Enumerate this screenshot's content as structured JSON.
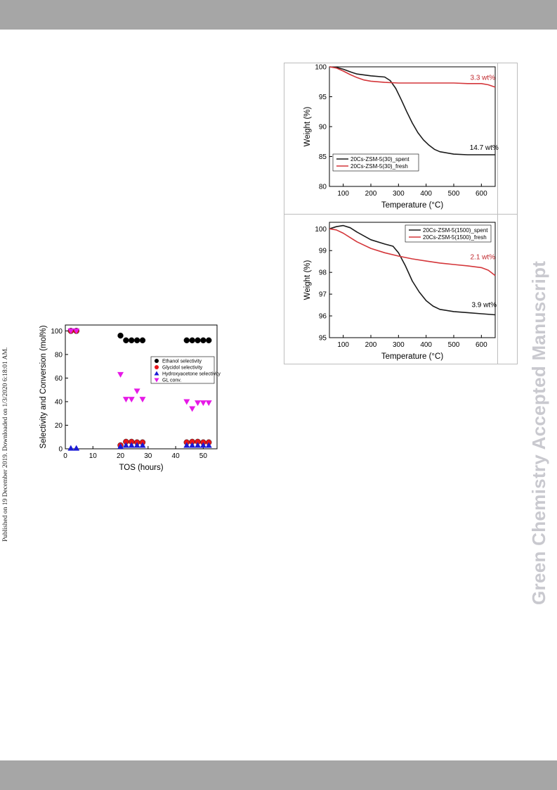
{
  "side_note": "Published on 19 December 2019. Downloaded on 1/3/2020 6:18:01 AM.",
  "journal_watermark": "Green Chemistry Accepted Manuscript",
  "chart_data": [
    {
      "type": "scatter",
      "xlabel": "TOS (hours)",
      "ylabel": "Selectivity and Conversion (mol%)",
      "xlim": [
        0,
        55
      ],
      "ylim": [
        0,
        105
      ],
      "xticks": [
        0,
        10,
        20,
        30,
        40,
        50
      ],
      "yticks": [
        0,
        20,
        40,
        60,
        80,
        100
      ],
      "legend_position": "middle-right",
      "series": [
        {
          "name": "Ethanol selectivity",
          "color": "#000000",
          "marker": "circle",
          "x": [
            2,
            4,
            20,
            22,
            24,
            26,
            28,
            44,
            46,
            48,
            50,
            52
          ],
          "y": [
            100,
            100,
            96,
            92,
            92,
            92,
            92,
            92,
            92,
            92,
            92,
            92
          ]
        },
        {
          "name": "Glycidol selectivity",
          "color": "#e8151a",
          "marker": "circle",
          "x": [
            2,
            4,
            20,
            22,
            24,
            26,
            28,
            44,
            46,
            48,
            50,
            52
          ],
          "y": [
            100,
            100,
            3,
            6,
            6,
            5.5,
            5.5,
            5.5,
            6,
            6,
            5.5,
            5.5
          ]
        },
        {
          "name": "Hydroxyacetone selectivity",
          "color": "#1a1ad6",
          "marker": "triangle-up",
          "x": [
            2,
            4,
            20,
            22,
            24,
            26,
            28,
            44,
            46,
            48,
            50,
            52
          ],
          "y": [
            0.5,
            0.5,
            2,
            3,
            3,
            3,
            3,
            3,
            3,
            3,
            3,
            3
          ]
        },
        {
          "name": "GL conv.",
          "color": "#e619e6",
          "marker": "triangle-down",
          "x": [
            2,
            4,
            20,
            22,
            24,
            26,
            28,
            44,
            46,
            48,
            50,
            52
          ],
          "y": [
            100,
            100,
            63,
            42,
            42,
            49,
            42,
            40,
            34,
            39,
            39,
            39
          ]
        }
      ]
    },
    {
      "type": "line",
      "xlabel": "Temperature (°C)",
      "ylabel": "Weight (%)",
      "xlim": [
        50,
        650
      ],
      "ylim": [
        80,
        100
      ],
      "xticks": [
        100,
        200,
        300,
        400,
        500,
        600
      ],
      "yticks": [
        80,
        85,
        90,
        95,
        100
      ],
      "legend_position": "bottom-left",
      "annotations": [
        {
          "text": "3.3 wt%",
          "x": 605,
          "y": 97.8,
          "color": "#c0282d"
        },
        {
          "text": "14.7 wt%",
          "x": 610,
          "y": 86.1,
          "color": "#000000"
        }
      ],
      "series": [
        {
          "name": "20Cs-ZSM-5(30)_spent",
          "color": "#1a1a1a",
          "x": [
            50,
            75,
            100,
            130,
            150,
            200,
            250,
            270,
            290,
            310,
            330,
            350,
            370,
            390,
            410,
            430,
            450,
            500,
            550,
            600,
            650
          ],
          "y": [
            100,
            99.9,
            99.6,
            99.1,
            98.8,
            98.5,
            98.3,
            97.7,
            96.4,
            94.5,
            92.5,
            90.6,
            89.0,
            87.8,
            86.9,
            86.2,
            85.8,
            85.4,
            85.3,
            85.3,
            85.3
          ]
        },
        {
          "name": "20Cs-ZSM-5(30)_fresh",
          "color": "#d4363a",
          "x": [
            50,
            75,
            100,
            125,
            150,
            175,
            200,
            250,
            300,
            350,
            400,
            450,
            500,
            550,
            600,
            625,
            650
          ],
          "y": [
            100,
            99.8,
            99.3,
            98.7,
            98.2,
            97.8,
            97.6,
            97.4,
            97.3,
            97.3,
            97.3,
            97.3,
            97.3,
            97.2,
            97.2,
            97.0,
            96.6
          ]
        }
      ]
    },
    {
      "type": "line",
      "xlabel": "Temperature (°C)",
      "ylabel": "Weight (%)",
      "xlim": [
        50,
        650
      ],
      "ylim": [
        95,
        100.3
      ],
      "xticks": [
        100,
        200,
        300,
        400,
        500,
        600
      ],
      "yticks": [
        95,
        96,
        97,
        98,
        99,
        100
      ],
      "legend_position": "top-right",
      "annotations": [
        {
          "text": "2.1 wt%",
          "x": 605,
          "y": 98.6,
          "color": "#c0282d"
        },
        {
          "text": "3.9 wt%",
          "x": 610,
          "y": 96.4,
          "color": "#000000"
        }
      ],
      "series": [
        {
          "name": "20Cs-ZSM-5(1500)_spent",
          "color": "#1a1a1a",
          "x": [
            50,
            75,
            100,
            125,
            150,
            200,
            250,
            280,
            300,
            325,
            350,
            375,
            400,
            425,
            450,
            500,
            550,
            600,
            650
          ],
          "y": [
            100.0,
            100.1,
            100.15,
            100.05,
            99.85,
            99.5,
            99.3,
            99.2,
            98.9,
            98.3,
            97.6,
            97.1,
            96.7,
            96.45,
            96.3,
            96.2,
            96.15,
            96.1,
            96.05
          ]
        },
        {
          "name": "20Cs-ZSM-5(1500)_fresh",
          "color": "#d4363a",
          "x": [
            50,
            75,
            100,
            125,
            150,
            200,
            250,
            300,
            350,
            400,
            450,
            500,
            550,
            600,
            625,
            650
          ],
          "y": [
            100.0,
            99.95,
            99.8,
            99.6,
            99.4,
            99.1,
            98.9,
            98.75,
            98.62,
            98.52,
            98.43,
            98.36,
            98.3,
            98.22,
            98.1,
            97.85
          ]
        }
      ]
    }
  ]
}
